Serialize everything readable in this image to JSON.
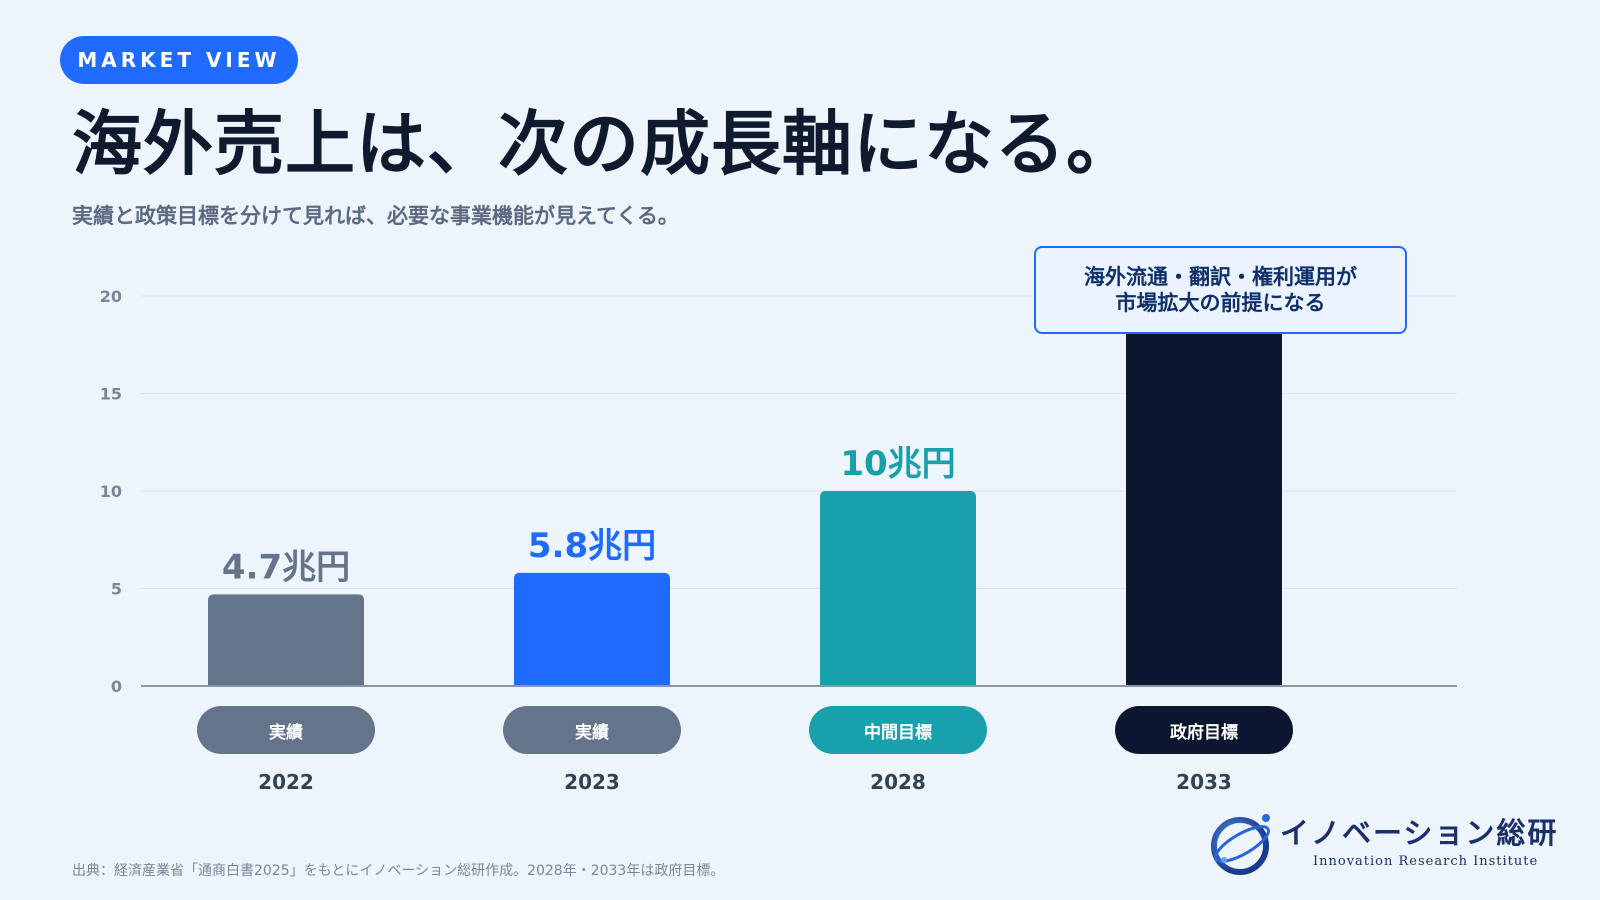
{
  "header": {
    "badge": "MARKET VIEW",
    "title": "海外売上は、次の成長軸になる。",
    "subtitle": "実績と政策目標を分けて見れば、必要な事業機能が見えてくる。"
  },
  "callout": {
    "line1": "海外流通・翻訳・権利運用が",
    "line2": "市場拡大の前提になる"
  },
  "footer": {
    "source": "出典：経済産業省「通商白書2025」をもとにイノベーション総研作成。2028年・2033年は政府目標。"
  },
  "logo": {
    "name": "イノベーション総研",
    "subtitle": "Innovation Research Institute"
  },
  "chart_data": {
    "type": "bar",
    "categories": [
      "2022",
      "2023",
      "2028",
      "2033"
    ],
    "values": [
      4.7,
      5.8,
      10,
      20
    ],
    "data_labels": [
      "4.7兆円",
      "5.8兆円",
      "10兆円",
      ""
    ],
    "category_tags": [
      "実績",
      "実績",
      "中間目標",
      "政府目標"
    ],
    "colors": [
      "#64748b",
      "#1f6bff",
      "#19a0ad",
      "#0c1631"
    ],
    "tag_colors": [
      "#64748b",
      "#64748b",
      "#19a0ad",
      "#0c1631"
    ],
    "yticks": [
      0,
      5,
      10,
      15,
      20
    ],
    "ylim": [
      0,
      20
    ],
    "grid": true,
    "title": "",
    "xlabel": "",
    "ylabel": ""
  }
}
